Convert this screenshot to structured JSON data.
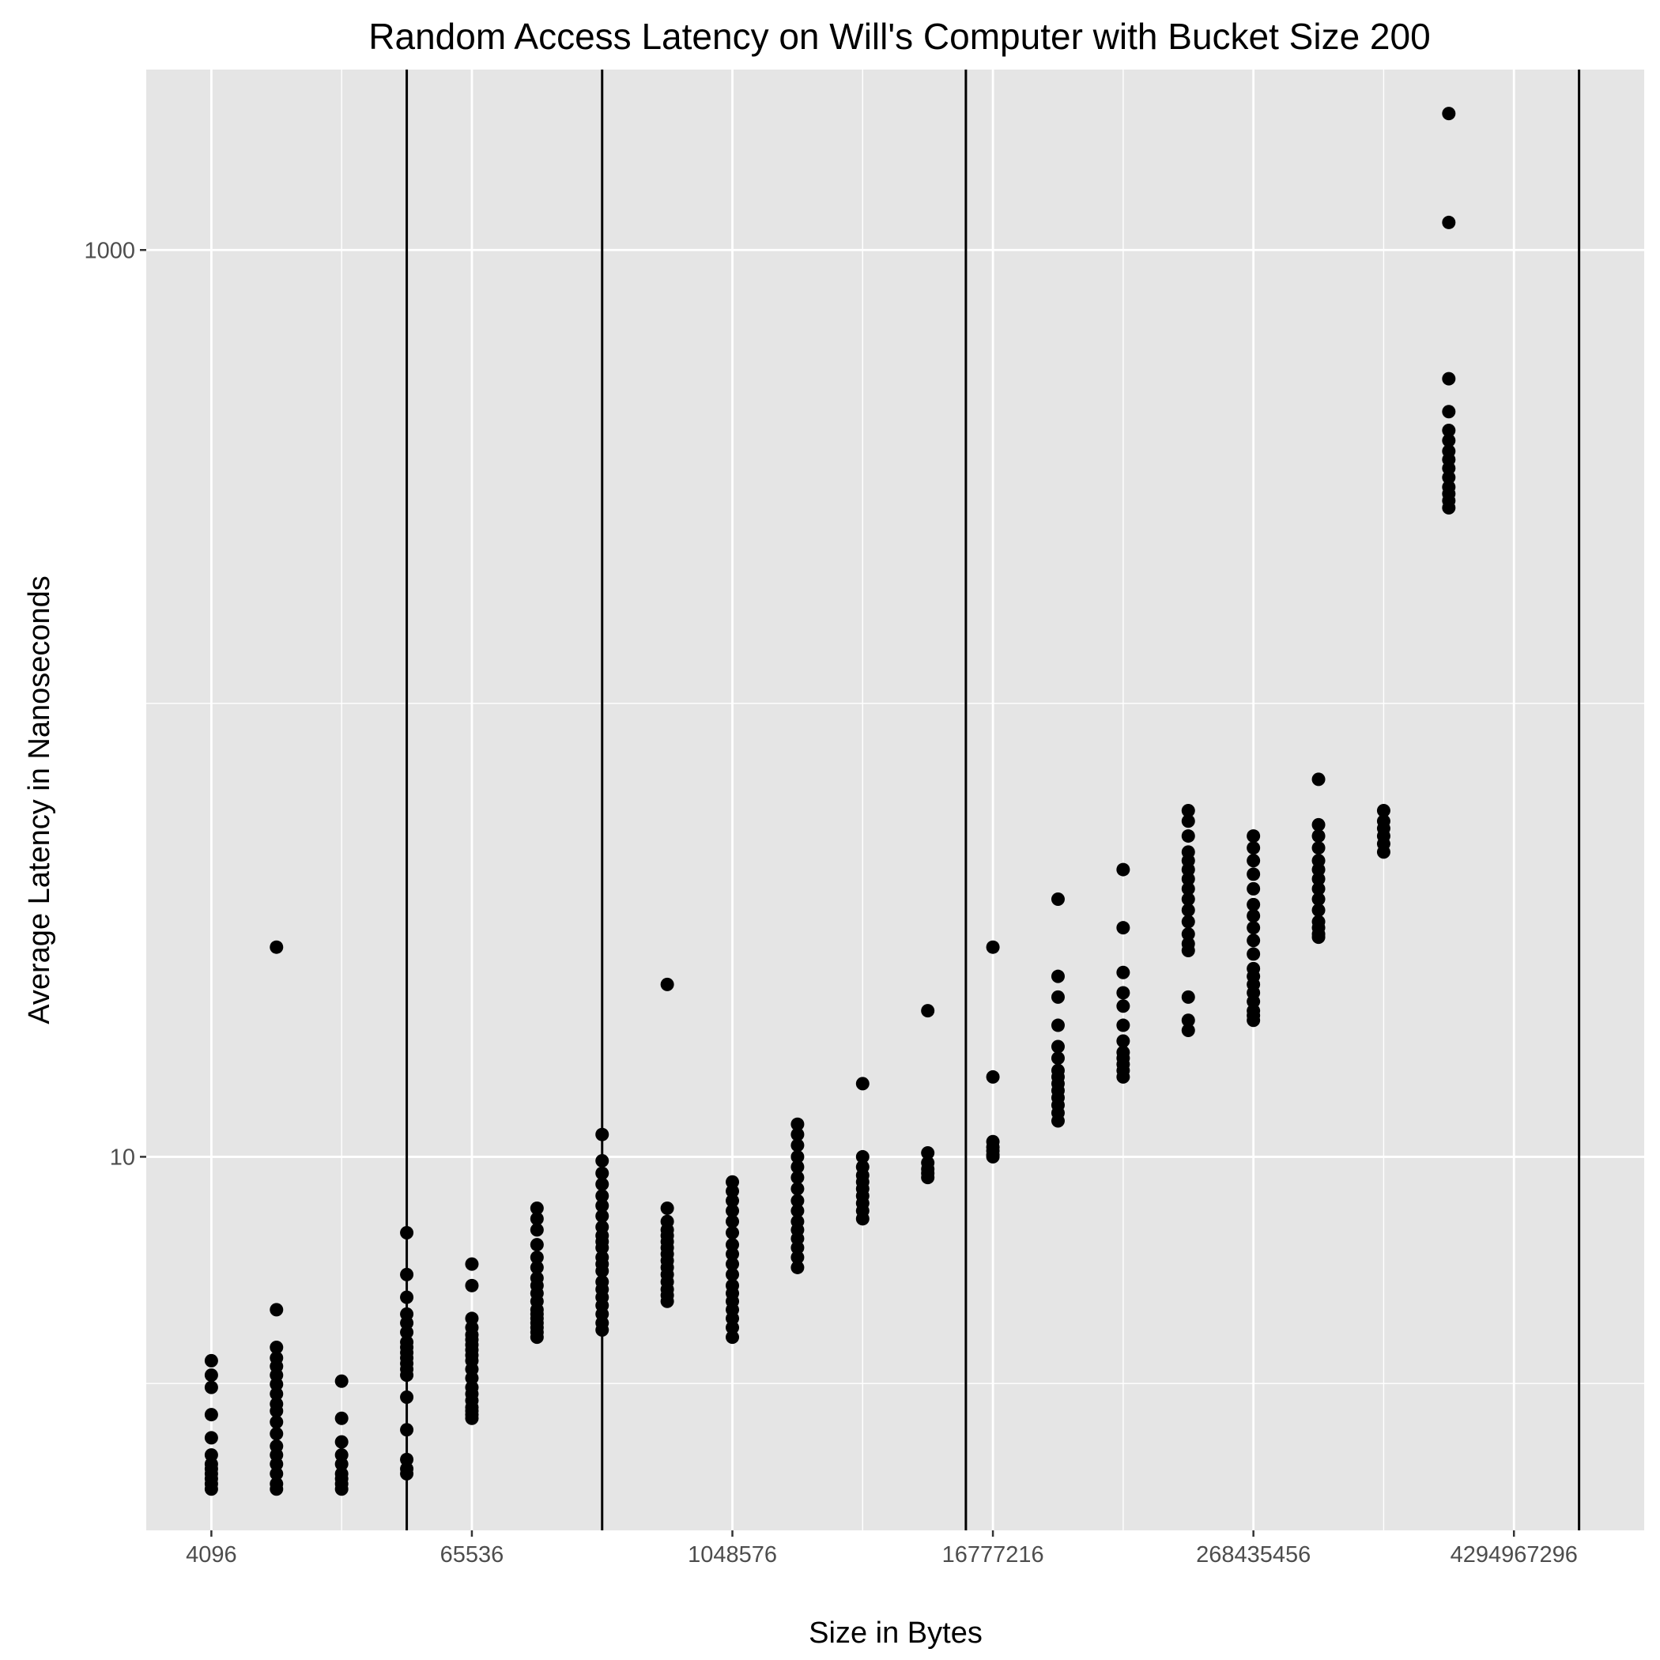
{
  "chart_data": {
    "type": "scatter",
    "title": "Random Access Latency on Will's Computer with Bucket Size 200",
    "xlabel": "Size in Bytes",
    "ylabel": "Average Latency in Nanoseconds",
    "x_scale": "log2",
    "y_scale": "log10",
    "xlim": [
      2048,
      17179869184
    ],
    "ylim": [
      1.5,
      2500
    ],
    "x_ticks": [
      4096,
      65536,
      1048576,
      16777216,
      268435456,
      4294967296
    ],
    "x_tick_labels": [
      "4096",
      "65536",
      "1048576",
      "16777216",
      "268435456",
      "4294967296"
    ],
    "y_ticks": [
      10,
      1000
    ],
    "y_tick_labels": [
      "10",
      "1000"
    ],
    "grid": true,
    "reference_lines_x": [
      32768,
      262144,
      12582912,
      8589934592
    ],
    "colors": {
      "background": "#e5e5e5",
      "grid": "#ffffff",
      "points": "#000000",
      "reference_lines": "#000000"
    },
    "series": [
      {
        "points": [
          [
            4096,
            2.2
          ],
          [
            4096,
            2.1
          ],
          [
            4096,
            2.05
          ],
          [
            4096,
            2.0
          ],
          [
            4096,
            1.95
          ],
          [
            4096,
            1.9
          ],
          [
            4096,
            1.85
          ],
          [
            4096,
            2.4
          ],
          [
            4096,
            2.7
          ],
          [
            4096,
            3.1
          ],
          [
            4096,
            3.3
          ],
          [
            4096,
            3.55
          ],
          [
            8192,
            3.8
          ],
          [
            8192,
            3.6
          ],
          [
            8192,
            3.45
          ],
          [
            8192,
            3.3
          ],
          [
            8192,
            3.15
          ],
          [
            8192,
            3.0
          ],
          [
            8192,
            2.85
          ],
          [
            8192,
            2.75
          ],
          [
            8192,
            2.6
          ],
          [
            8192,
            2.45
          ],
          [
            8192,
            2.3
          ],
          [
            8192,
            2.2
          ],
          [
            8192,
            2.1
          ],
          [
            8192,
            2.0
          ],
          [
            8192,
            1.9
          ],
          [
            8192,
            1.85
          ],
          [
            8192,
            4.6
          ],
          [
            8192,
            29
          ],
          [
            16384,
            3.2
          ],
          [
            16384,
            2.65
          ],
          [
            16384,
            2.35
          ],
          [
            16384,
            2.2
          ],
          [
            16384,
            2.1
          ],
          [
            16384,
            2.0
          ],
          [
            16384,
            1.95
          ],
          [
            16384,
            1.9
          ],
          [
            16384,
            1.85
          ],
          [
            32768,
            6.8
          ],
          [
            32768,
            5.5
          ],
          [
            32768,
            4.9
          ],
          [
            32768,
            4.5
          ],
          [
            32768,
            4.3
          ],
          [
            32768,
            4.1
          ],
          [
            32768,
            3.9
          ],
          [
            32768,
            3.8
          ],
          [
            32768,
            3.7
          ],
          [
            32768,
            3.6
          ],
          [
            32768,
            3.5
          ],
          [
            32768,
            3.4
          ],
          [
            32768,
            3.3
          ],
          [
            32768,
            2.95
          ],
          [
            32768,
            2.5
          ],
          [
            32768,
            2.15
          ],
          [
            32768,
            2.05
          ],
          [
            32768,
            2.0
          ],
          [
            65536,
            5.8
          ],
          [
            65536,
            5.2
          ],
          [
            65536,
            4.4
          ],
          [
            65536,
            4.2
          ],
          [
            65536,
            4.05
          ],
          [
            65536,
            3.95
          ],
          [
            65536,
            3.85
          ],
          [
            65536,
            3.75
          ],
          [
            65536,
            3.65
          ],
          [
            65536,
            3.55
          ],
          [
            65536,
            3.4
          ],
          [
            65536,
            3.25
          ],
          [
            65536,
            3.1
          ],
          [
            65536,
            3.0
          ],
          [
            65536,
            2.9
          ],
          [
            65536,
            2.8
          ],
          [
            65536,
            2.75
          ],
          [
            65536,
            2.7
          ],
          [
            65536,
            2.65
          ],
          [
            131072,
            7.7
          ],
          [
            131072,
            7.3
          ],
          [
            131072,
            6.9
          ],
          [
            131072,
            6.4
          ],
          [
            131072,
            6.0
          ],
          [
            131072,
            5.7
          ],
          [
            131072,
            5.4
          ],
          [
            131072,
            5.2
          ],
          [
            131072,
            5.0
          ],
          [
            131072,
            4.8
          ],
          [
            131072,
            4.6
          ],
          [
            131072,
            4.5
          ],
          [
            131072,
            4.4
          ],
          [
            131072,
            4.3
          ],
          [
            131072,
            4.2
          ],
          [
            131072,
            4.1
          ],
          [
            131072,
            4.0
          ],
          [
            262144,
            11.2
          ],
          [
            262144,
            9.8
          ],
          [
            262144,
            9.2
          ],
          [
            262144,
            8.7
          ],
          [
            262144,
            8.2
          ],
          [
            262144,
            7.8
          ],
          [
            262144,
            7.4
          ],
          [
            262144,
            7.0
          ],
          [
            262144,
            6.7
          ],
          [
            262144,
            6.5
          ],
          [
            262144,
            6.3
          ],
          [
            262144,
            6.0
          ],
          [
            262144,
            5.8
          ],
          [
            262144,
            5.6
          ],
          [
            262144,
            5.3
          ],
          [
            262144,
            5.1
          ],
          [
            262144,
            4.9
          ],
          [
            262144,
            4.7
          ],
          [
            262144,
            4.5
          ],
          [
            262144,
            4.3
          ],
          [
            262144,
            4.15
          ],
          [
            524288,
            24
          ],
          [
            524288,
            7.7
          ],
          [
            524288,
            7.2
          ],
          [
            524288,
            6.9
          ],
          [
            524288,
            6.7
          ],
          [
            524288,
            6.5
          ],
          [
            524288,
            6.3
          ],
          [
            524288,
            6.1
          ],
          [
            524288,
            5.9
          ],
          [
            524288,
            5.7
          ],
          [
            524288,
            5.5
          ],
          [
            524288,
            5.3
          ],
          [
            524288,
            5.1
          ],
          [
            524288,
            4.95
          ],
          [
            524288,
            4.8
          ],
          [
            1048576,
            8.8
          ],
          [
            1048576,
            8.4
          ],
          [
            1048576,
            8.0
          ],
          [
            1048576,
            7.6
          ],
          [
            1048576,
            7.2
          ],
          [
            1048576,
            6.8
          ],
          [
            1048576,
            6.4
          ],
          [
            1048576,
            6.1
          ],
          [
            1048576,
            5.8
          ],
          [
            1048576,
            5.5
          ],
          [
            1048576,
            5.2
          ],
          [
            1048576,
            5.0
          ],
          [
            1048576,
            4.8
          ],
          [
            1048576,
            4.6
          ],
          [
            1048576,
            4.4
          ],
          [
            1048576,
            4.2
          ],
          [
            1048576,
            4.0
          ],
          [
            2097152,
            11.8
          ],
          [
            2097152,
            11.2
          ],
          [
            2097152,
            10.6
          ],
          [
            2097152,
            10.0
          ],
          [
            2097152,
            9.5
          ],
          [
            2097152,
            9.0
          ],
          [
            2097152,
            8.5
          ],
          [
            2097152,
            8.0
          ],
          [
            2097152,
            7.6
          ],
          [
            2097152,
            7.2
          ],
          [
            2097152,
            6.9
          ],
          [
            2097152,
            6.6
          ],
          [
            2097152,
            6.3
          ],
          [
            2097152,
            6.0
          ],
          [
            2097152,
            5.7
          ],
          [
            4194304,
            14.5
          ],
          [
            4194304,
            10.0
          ],
          [
            4194304,
            9.5
          ],
          [
            4194304,
            9.1
          ],
          [
            4194304,
            8.8
          ],
          [
            4194304,
            8.5
          ],
          [
            4194304,
            8.2
          ],
          [
            4194304,
            7.9
          ],
          [
            4194304,
            7.6
          ],
          [
            4194304,
            7.3
          ],
          [
            8388608,
            21
          ],
          [
            8388608,
            10.2
          ],
          [
            8388608,
            9.7
          ],
          [
            8388608,
            9.4
          ],
          [
            8388608,
            9.2
          ],
          [
            8388608,
            9.0
          ],
          [
            16777216,
            29
          ],
          [
            16777216,
            15
          ],
          [
            16777216,
            10.8
          ],
          [
            16777216,
            10.5
          ],
          [
            16777216,
            10.3
          ],
          [
            16777216,
            10.1
          ],
          [
            16777216,
            10.0
          ],
          [
            33554432,
            37
          ],
          [
            33554432,
            25
          ],
          [
            33554432,
            22.5
          ],
          [
            33554432,
            19.5
          ],
          [
            33554432,
            17.5
          ],
          [
            33554432,
            16.5
          ],
          [
            33554432,
            15.5
          ],
          [
            33554432,
            15.0
          ],
          [
            33554432,
            14.5
          ],
          [
            33554432,
            14.0
          ],
          [
            33554432,
            13.5
          ],
          [
            33554432,
            13.0
          ],
          [
            33554432,
            12.5
          ],
          [
            33554432,
            12.0
          ],
          [
            67108864,
            43
          ],
          [
            67108864,
            32
          ],
          [
            67108864,
            25.5
          ],
          [
            67108864,
            23.0
          ],
          [
            67108864,
            21.5
          ],
          [
            67108864,
            19.5
          ],
          [
            67108864,
            18.0
          ],
          [
            67108864,
            17.0
          ],
          [
            67108864,
            16.5
          ],
          [
            67108864,
            16.0
          ],
          [
            67108864,
            15.5
          ],
          [
            67108864,
            15.0
          ],
          [
            134217728,
            58
          ],
          [
            134217728,
            55
          ],
          [
            134217728,
            51
          ],
          [
            134217728,
            47
          ],
          [
            134217728,
            45
          ],
          [
            134217728,
            43
          ],
          [
            134217728,
            41
          ],
          [
            134217728,
            39
          ],
          [
            134217728,
            37
          ],
          [
            134217728,
            35
          ],
          [
            134217728,
            33
          ],
          [
            134217728,
            31
          ],
          [
            134217728,
            29.5
          ],
          [
            134217728,
            28.5
          ],
          [
            134217728,
            22.5
          ],
          [
            134217728,
            20
          ],
          [
            134217728,
            19
          ],
          [
            268435456,
            51
          ],
          [
            268435456,
            48
          ],
          [
            268435456,
            45
          ],
          [
            268435456,
            42
          ],
          [
            268435456,
            39
          ],
          [
            268435456,
            36
          ],
          [
            268435456,
            34
          ],
          [
            268435456,
            32
          ],
          [
            268435456,
            30
          ],
          [
            268435456,
            28
          ],
          [
            268435456,
            26
          ],
          [
            268435456,
            25
          ],
          [
            268435456,
            24
          ],
          [
            268435456,
            23
          ],
          [
            268435456,
            22
          ],
          [
            268435456,
            21
          ],
          [
            268435456,
            20.5
          ],
          [
            268435456,
            20
          ],
          [
            536870912,
            68
          ],
          [
            536870912,
            54
          ],
          [
            536870912,
            51
          ],
          [
            536870912,
            48
          ],
          [
            536870912,
            45
          ],
          [
            536870912,
            43
          ],
          [
            536870912,
            41
          ],
          [
            536870912,
            39
          ],
          [
            536870912,
            37
          ],
          [
            536870912,
            35
          ],
          [
            536870912,
            33
          ],
          [
            536870912,
            32
          ],
          [
            536870912,
            31
          ],
          [
            536870912,
            30.5
          ],
          [
            1073741824,
            58
          ],
          [
            1073741824,
            55
          ],
          [
            1073741824,
            53
          ],
          [
            1073741824,
            51
          ],
          [
            1073741824,
            49
          ],
          [
            1073741824,
            47
          ],
          [
            2147483648,
            2000
          ],
          [
            2147483648,
            1150
          ],
          [
            2147483648,
            520
          ],
          [
            2147483648,
            440
          ],
          [
            2147483648,
            400
          ],
          [
            2147483648,
            380
          ],
          [
            2147483648,
            360
          ],
          [
            2147483648,
            345
          ],
          [
            2147483648,
            330
          ],
          [
            2147483648,
            315
          ],
          [
            2147483648,
            300
          ],
          [
            2147483648,
            290
          ],
          [
            2147483648,
            280
          ],
          [
            2147483648,
            270
          ]
        ]
      }
    ]
  }
}
